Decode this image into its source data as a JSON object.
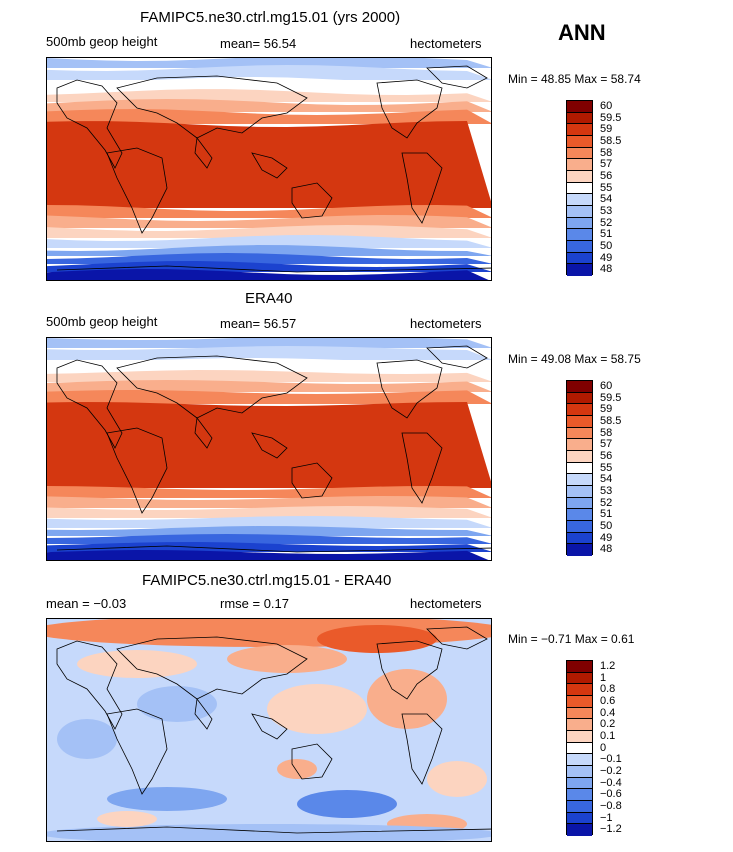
{
  "season": "ANN",
  "panels": [
    {
      "title": "FAMIPC5.ne30.ctrl.mg15.01 (yrs 2000)",
      "left_label": "500mb geop height",
      "center_label": "mean=  56.54",
      "units": "hectometers",
      "minmax": "Min =  48.85  Max =  58.74",
      "levels": [
        "60",
        "59.5",
        "59",
        "58.5",
        "58",
        "57",
        "56",
        "55",
        "54",
        "53",
        "52",
        "51",
        "50",
        "49",
        "48"
      ]
    },
    {
      "title": "ERA40",
      "left_label": "500mb geop height",
      "center_label": "mean=  56.57",
      "units": "hectometers",
      "minmax": "Min =  49.08  Max =  58.75",
      "levels": [
        "60",
        "59.5",
        "59",
        "58.5",
        "58",
        "57",
        "56",
        "55",
        "54",
        "53",
        "52",
        "51",
        "50",
        "49",
        "48"
      ]
    },
    {
      "title": "FAMIPC5.ne30.ctrl.mg15.01 - ERA40",
      "left_label": "mean =  −0.03",
      "center_label": "rmse =   0.17",
      "units": "hectometers",
      "minmax": "Min =  −0.71  Max =   0.61",
      "levels": [
        "1.2",
        "1",
        "0.8",
        "0.6",
        "0.4",
        "0.2",
        "0.1",
        "0",
        "−0.1",
        "−0.2",
        "−0.4",
        "−0.6",
        "−0.8",
        "−1",
        "−1.2"
      ]
    }
  ],
  "colors": {
    "palette": [
      "#800000",
      "#b01a00",
      "#d43710",
      "#ea5a2a",
      "#f5875a",
      "#f9ae8c",
      "#fcd4c0",
      "#ffffff",
      "#c6d9fb",
      "#a4c1f6",
      "#7ea6f0",
      "#5a88e9",
      "#3866df",
      "#1b42cf",
      "#0a15a8"
    ],
    "coast": "#000000"
  }
}
